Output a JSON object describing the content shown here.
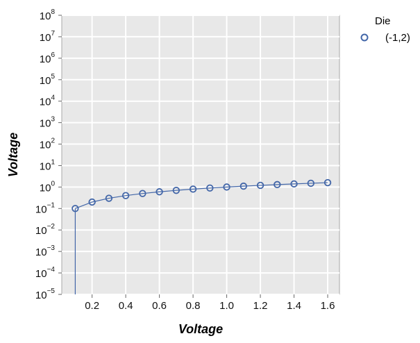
{
  "chart_data": {
    "type": "scatter",
    "xlabel": "Voltage",
    "ylabel": "Voltage",
    "xlim": [
      0.02,
      1.67
    ],
    "ylim": [
      1e-05,
      100000000.0
    ],
    "yscale": "log",
    "xticks": [
      "0.2",
      "0.4",
      "0.6",
      "0.8",
      "1.0",
      "1.2",
      "1.4",
      "1.6"
    ],
    "xtick_values": [
      0.2,
      0.4,
      0.6,
      0.8,
      1.0,
      1.2,
      1.4,
      1.6
    ],
    "yticks": [
      {
        "base": "10",
        "exp": "−5",
        "value": 1e-05
      },
      {
        "base": "10",
        "exp": "−4",
        "value": 0.0001
      },
      {
        "base": "10",
        "exp": "−3",
        "value": 0.001
      },
      {
        "base": "10",
        "exp": "−2",
        "value": 0.01
      },
      {
        "base": "10",
        "exp": "−1",
        "value": 0.1
      },
      {
        "base": "10",
        "exp": "0",
        "value": 1
      },
      {
        "base": "10",
        "exp": "1",
        "value": 10
      },
      {
        "base": "10",
        "exp": "2",
        "value": 100
      },
      {
        "base": "10",
        "exp": "3",
        "value": 1000.0
      },
      {
        "base": "10",
        "exp": "4",
        "value": 10000.0
      },
      {
        "base": "10",
        "exp": "5",
        "value": 100000.0
      },
      {
        "base": "10",
        "exp": "6",
        "value": 1000000.0
      },
      {
        "base": "10",
        "exp": "7",
        "value": 10000000.0
      },
      {
        "base": "10",
        "exp": "8",
        "value": 100000000.0
      }
    ],
    "grid": true,
    "legend": {
      "title": "Die",
      "placement": "outside-top-right"
    },
    "series": [
      {
        "name": "(-1,2)",
        "color": "#4266a8",
        "x": [
          0.1,
          0.2,
          0.3,
          0.4,
          0.5,
          0.6,
          0.7,
          0.8,
          0.9,
          1.0,
          1.1,
          1.2,
          1.3,
          1.4,
          1.5,
          1.6
        ],
        "y": [
          0.1,
          0.2,
          0.3,
          0.4,
          0.5,
          0.6,
          0.7,
          0.8,
          0.9,
          1.0,
          1.1,
          1.2,
          1.3,
          1.4,
          1.5,
          1.6
        ],
        "drop_line_to_axis": true
      }
    ]
  }
}
